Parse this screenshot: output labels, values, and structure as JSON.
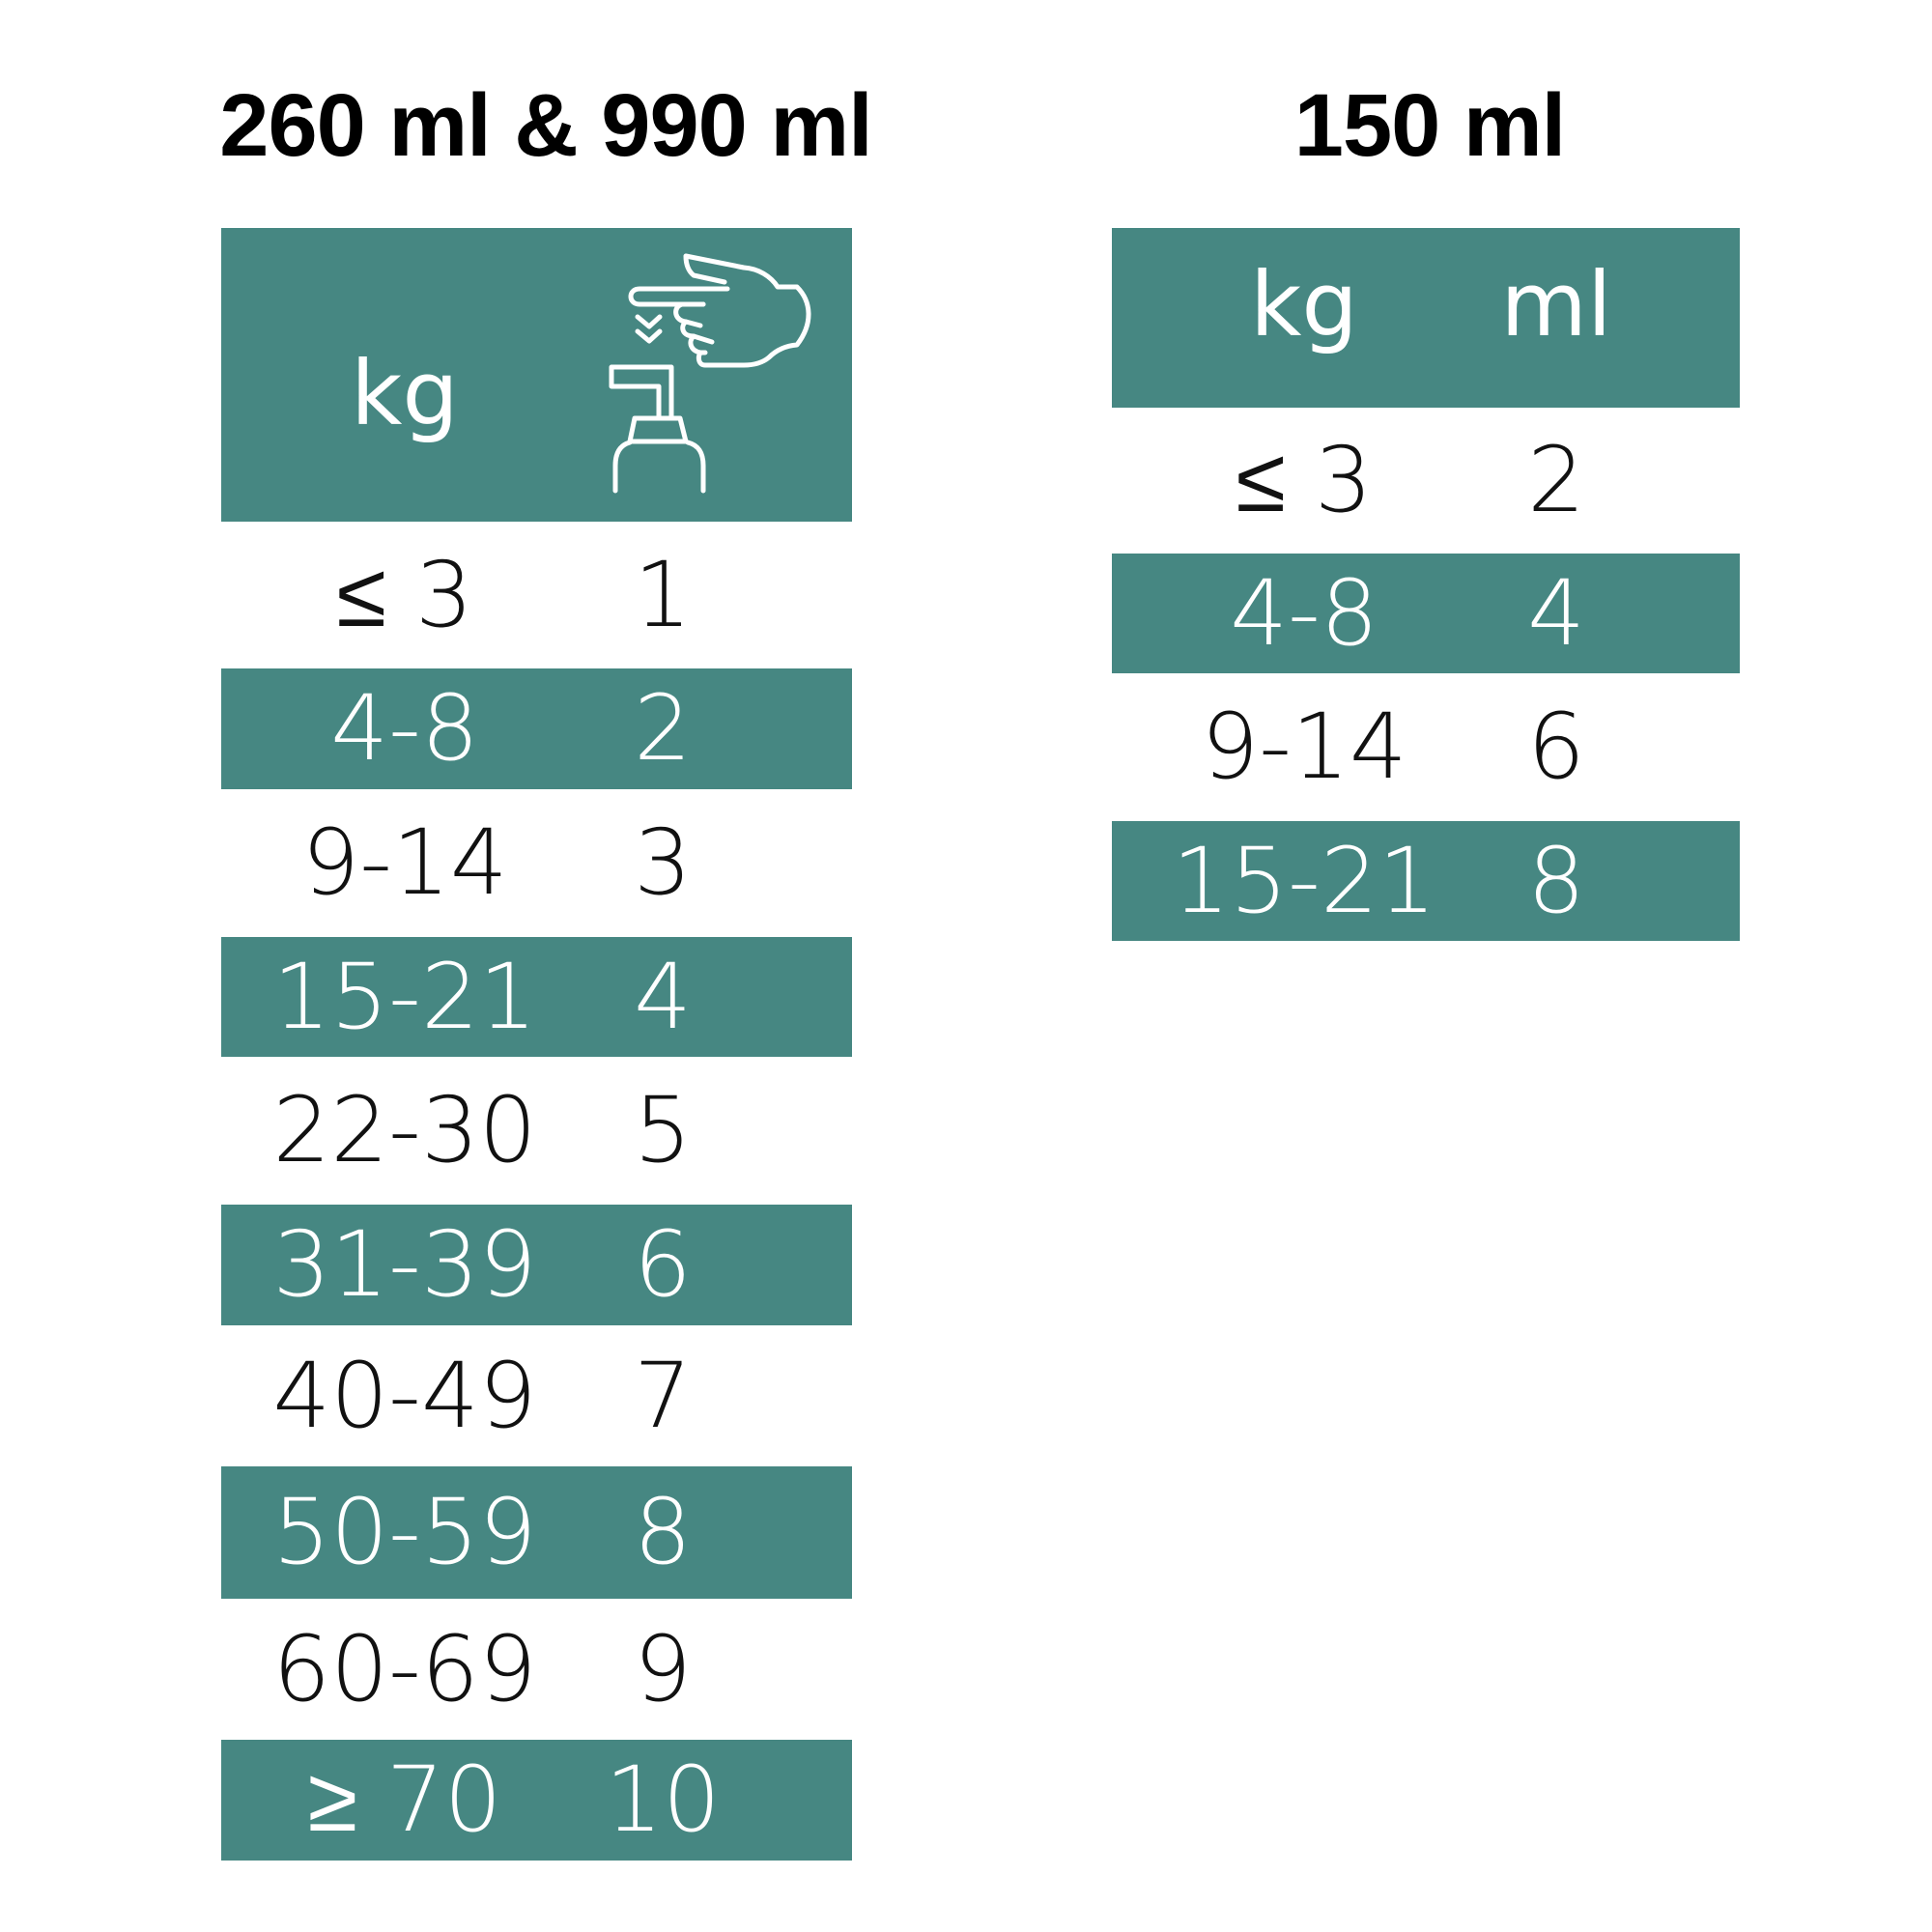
{
  "tables": [
    {
      "title": "260 ml & 990 ml",
      "header": {
        "kg_label": "kg",
        "dose_icon": "pump-dispenser-press-icon"
      },
      "rows": [
        {
          "kg": "≤ 3",
          "dose": "1"
        },
        {
          "kg": "4-8",
          "dose": "2"
        },
        {
          "kg": "9-14",
          "dose": "3"
        },
        {
          "kg": "15-21",
          "dose": "4"
        },
        {
          "kg": "22-30",
          "dose": "5"
        },
        {
          "kg": "31-39",
          "dose": "6"
        },
        {
          "kg": "40-49",
          "dose": "7"
        },
        {
          "kg": "50-59",
          "dose": "8"
        },
        {
          "kg": "60-69",
          "dose": "9"
        },
        {
          "kg": "≥ 70",
          "dose": "10"
        }
      ]
    },
    {
      "title": "150 ml",
      "header": {
        "kg_label": "kg",
        "ml_label": "ml"
      },
      "rows": [
        {
          "kg": "≤ 3",
          "ml": "2"
        },
        {
          "kg": "4-8",
          "ml": "4"
        },
        {
          "kg": "9-14",
          "ml": "6"
        },
        {
          "kg": "15-21",
          "ml": "8"
        }
      ]
    }
  ],
  "colors": {
    "accent": "#468782",
    "text": "#111111",
    "header_text": "#ffffff"
  }
}
